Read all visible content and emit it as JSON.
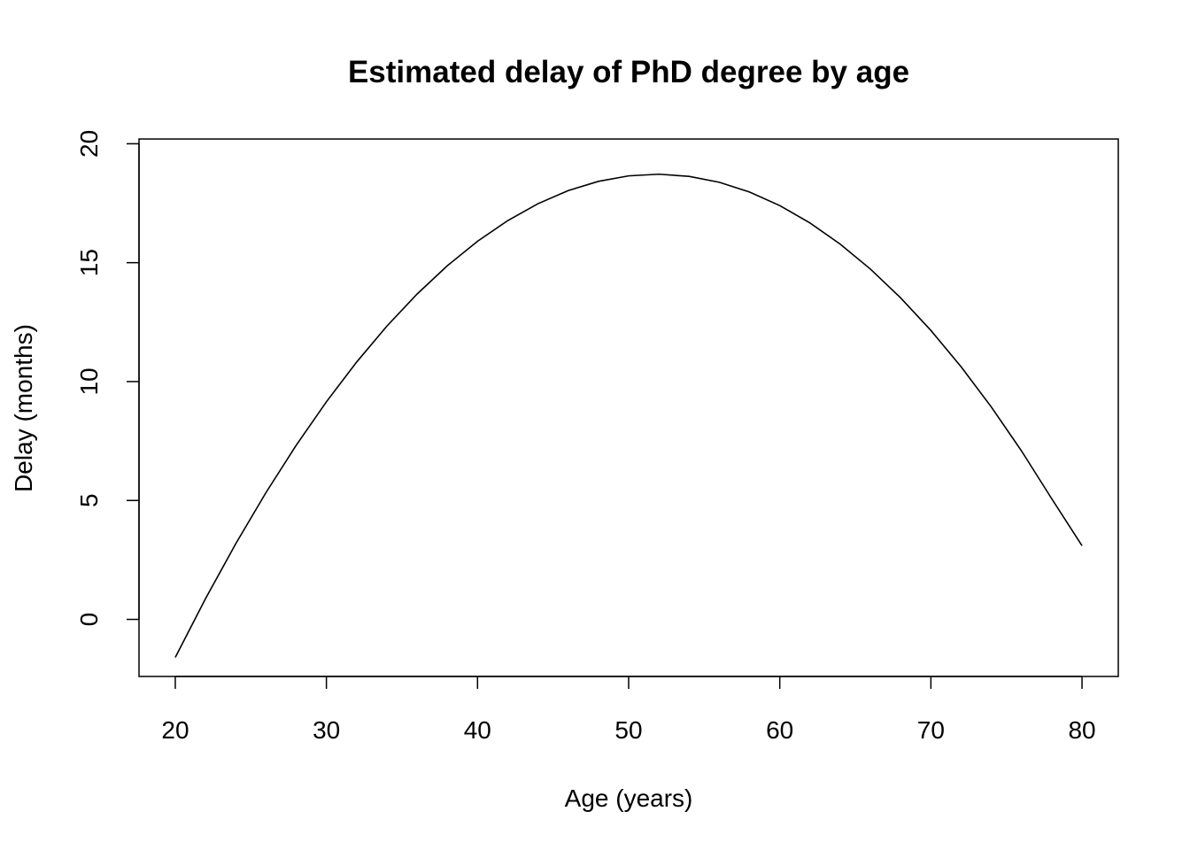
{
  "chart_data": {
    "type": "line",
    "title": "Estimated delay of PhD degree by age",
    "xlabel": "Age (years)",
    "ylabel": "Delay (months)",
    "xlim": [
      17.6,
      82.4
    ],
    "ylim": [
      -2.4,
      20.2
    ],
    "x_ticks": [
      20,
      30,
      40,
      50,
      60,
      70,
      80
    ],
    "y_ticks": [
      0,
      5,
      10,
      15,
      20
    ],
    "grid": false,
    "legend": "none",
    "series": [
      {
        "color": "#000000",
        "x": [
          20,
          22,
          24,
          26,
          28,
          30,
          32,
          34,
          36,
          38,
          40,
          42,
          44,
          46,
          48,
          50,
          52,
          54,
          56,
          58,
          60,
          62,
          64,
          66,
          68,
          70,
          72,
          74,
          76,
          78,
          80
        ],
        "y": [
          -1.6,
          0.87,
          3.18,
          5.33,
          7.32,
          9.15,
          10.82,
          12.33,
          13.68,
          14.87,
          15.9,
          16.77,
          17.48,
          18.03,
          18.42,
          18.65,
          18.72,
          18.63,
          18.38,
          17.97,
          17.4,
          16.67,
          15.78,
          14.73,
          13.52,
          12.15,
          10.62,
          8.93,
          7.08,
          5.07,
          3.1
        ]
      }
    ]
  }
}
